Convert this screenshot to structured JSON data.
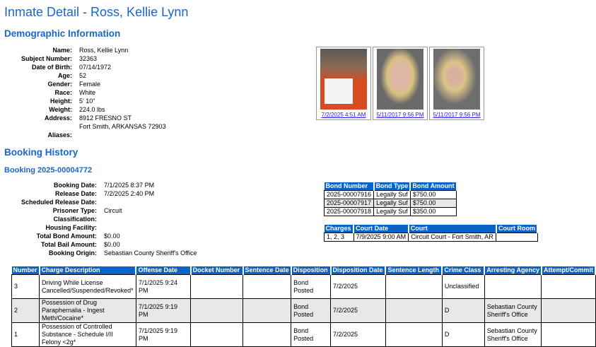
{
  "title": "Inmate Detail - Ross, Kellie Lynn",
  "demographics": {
    "heading": "Demographic Information",
    "fields": [
      {
        "label": "Name:",
        "value": "Ross, Kellie Lynn"
      },
      {
        "label": "Subject Number:",
        "value": "32363"
      },
      {
        "label": "Date of Birth:",
        "value": "07/14/1972"
      },
      {
        "label": "Age:",
        "value": "52"
      },
      {
        "label": "Gender:",
        "value": "Female"
      },
      {
        "label": "Race:",
        "value": "White"
      },
      {
        "label": "Height:",
        "value": "5' 10\""
      },
      {
        "label": "Weight:",
        "value": "224.0 lbs"
      },
      {
        "label": "Address:",
        "value": "8912 FRESNO ST",
        "value2": "Fort Smith, ARKANSAS 72903"
      },
      {
        "label": "Aliases:",
        "value": ""
      }
    ]
  },
  "photos": [
    {
      "caption": "7/2/2025 4:51 AM"
    },
    {
      "caption": "5/11/2017 9:56 PM"
    },
    {
      "caption": "5/11/2017 9:56 PM"
    }
  ],
  "booking_history": {
    "heading": "Booking History",
    "booking_title": "Booking 2025-00004772",
    "fields": [
      {
        "label": "Booking Date:",
        "value": "7/1/2025 8:37 PM"
      },
      {
        "label": "Release Date:",
        "value": "7/2/2025 2:40 PM"
      },
      {
        "label": "Scheduled Release Date:",
        "value": ""
      },
      {
        "label": "Prisoner Type:",
        "value": "Circuit"
      },
      {
        "label": "Classification:",
        "value": ""
      },
      {
        "label": "Housing Facility:",
        "value": ""
      },
      {
        "label": "Total Bond Amount:",
        "value": "$0.00"
      },
      {
        "label": "Total Bail Amount:",
        "value": "$0.00"
      },
      {
        "label": "Booking Origin:",
        "value": "Sebastian County Sheriff's Office"
      }
    ]
  },
  "bonds": {
    "headers": [
      "Bond Number",
      "Bond Type",
      "Bond Amount"
    ],
    "rows": [
      [
        "2025-00007916",
        "Legally Suf",
        "$750.00"
      ],
      [
        "2025-00007917",
        "Legally Suf",
        "$750.00"
      ],
      [
        "2025-00007918",
        "Legally Suf",
        "$350.00"
      ]
    ]
  },
  "court": {
    "headers": [
      "Charges",
      "Court Date",
      "Court",
      "Court Room"
    ],
    "rows": [
      [
        "1, 2, 3",
        "7/9/2025 9:00 AM",
        "Circuit Court - Fort Smith, AR",
        ""
      ]
    ]
  },
  "charges": {
    "headers": [
      "Number",
      "Charge Description",
      "Offense Date",
      "Docket Number",
      "Sentence Date",
      "Disposition",
      "Disposition Date",
      "Sentence Length",
      "Crime Class",
      "Arresting Agency",
      "Attempt/Commit"
    ],
    "rows": [
      [
        "3",
        "Driving While License Cancelled/Suspended/Revoked*",
        "7/1/2025 9:24 PM",
        "",
        "",
        "Bond Posted",
        "7/2/2025",
        "",
        "Unclassified",
        "",
        ""
      ],
      [
        "2",
        "Possession of Drug Paraphernalia - Ingest Meth/Cocaine*",
        "7/1/2025 9:19 PM",
        "",
        "",
        "Bond Posted",
        "7/2/2025",
        "",
        "D",
        "Sebastian County Sheriff's Office",
        ""
      ],
      [
        "1",
        "Possession of Controlled Substance - Schedule I/II Felony <2g*",
        "7/1/2025 9:19 PM",
        "",
        "",
        "Bond Posted",
        "7/2/2025",
        "",
        "D",
        "Sebastian County Sheriff's Office",
        ""
      ]
    ]
  }
}
